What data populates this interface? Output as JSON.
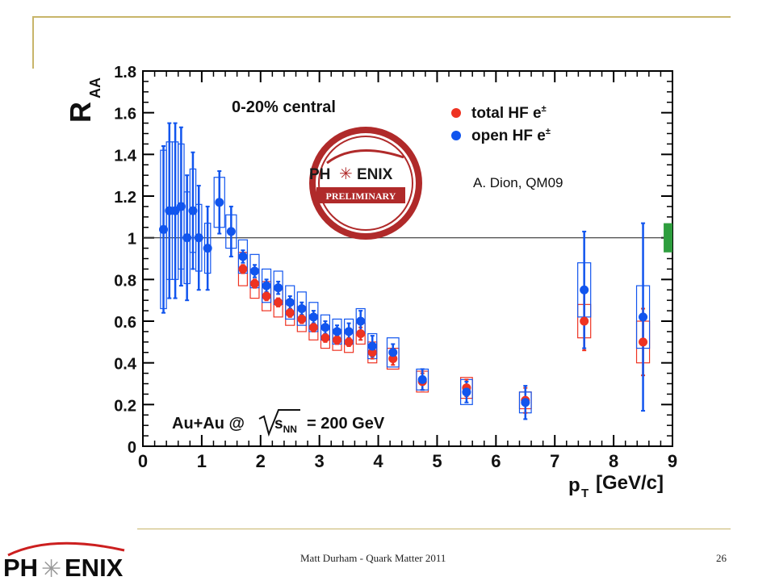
{
  "slide": {
    "footer": "Matt Durham - Quark Matter 2011",
    "page_number": "26",
    "logo_text": "PHENIX"
  },
  "annotations": {
    "centrality": "0-20% central",
    "system": "Au+Au @",
    "snn": "s",
    "snn_sub": "NN",
    "energy": "= 200 GeV",
    "credit": "A. Dion, QM09",
    "stamp_top": "PH",
    "stamp_mid": "ENIX",
    "stamp_bottom": "PRELIMINARY"
  },
  "colors": {
    "total": "#ee3322",
    "open": "#1155ee",
    "norm_box": "#2e9e3e",
    "frame": "#c8b56a",
    "stamp": "#b02a2a"
  },
  "chart_data": {
    "type": "scatter",
    "ylabel": "R",
    "ylabel_sub": "AA",
    "xlabel": "p",
    "xlabel_sub": "T",
    "xlabel_unit": "[GeV/c]",
    "xlim": [
      0,
      9
    ],
    "ylim": [
      0,
      1.8
    ],
    "xticks": [
      "0",
      "1",
      "2",
      "3",
      "4",
      "5",
      "6",
      "7",
      "8",
      "9"
    ],
    "yticks": [
      "0",
      "0.2",
      "0.4",
      "0.6",
      "0.8",
      "1",
      "1.2",
      "1.4",
      "1.6",
      "1.8"
    ],
    "reference_line": 1,
    "norm_uncertainty": [
      0.93,
      1.07
    ],
    "series": [
      {
        "name": "total HF e",
        "name_sup": "±",
        "color": "#ee3322",
        "x": [
          1.7,
          1.9,
          2.1,
          2.3,
          2.5,
          2.7,
          2.9,
          3.1,
          3.3,
          3.5,
          3.7,
          3.9,
          4.25,
          4.75,
          5.5,
          6.5,
          7.5,
          8.5
        ],
        "y": [
          0.85,
          0.78,
          0.72,
          0.69,
          0.64,
          0.61,
          0.57,
          0.52,
          0.51,
          0.5,
          0.54,
          0.45,
          0.42,
          0.31,
          0.28,
          0.22,
          0.6,
          0.5
        ],
        "stat": [
          0.02,
          0.02,
          0.02,
          0.02,
          0.02,
          0.02,
          0.02,
          0.02,
          0.02,
          0.02,
          0.03,
          0.03,
          0.03,
          0.04,
          0.04,
          0.06,
          0.14,
          0.16
        ],
        "sys": [
          0.08,
          0.07,
          0.07,
          0.07,
          0.06,
          0.06,
          0.06,
          0.05,
          0.05,
          0.05,
          0.05,
          0.05,
          0.05,
          0.05,
          0.05,
          0.04,
          0.08,
          0.1
        ]
      },
      {
        "name": "open HF e",
        "name_sup": "±",
        "color": "#1155ee",
        "x": [
          0.35,
          0.45,
          0.55,
          0.65,
          0.75,
          0.85,
          0.95,
          1.1,
          1.3,
          1.5,
          1.7,
          1.9,
          2.1,
          2.3,
          2.5,
          2.7,
          2.9,
          3.1,
          3.3,
          3.5,
          3.7,
          3.9,
          4.25,
          4.75,
          5.5,
          6.5,
          7.5,
          8.5
        ],
        "y": [
          1.04,
          1.13,
          1.13,
          1.15,
          1.0,
          1.13,
          1.0,
          0.95,
          1.17,
          1.03,
          0.91,
          0.84,
          0.77,
          0.76,
          0.69,
          0.66,
          0.62,
          0.57,
          0.55,
          0.55,
          0.6,
          0.48,
          0.45,
          0.32,
          0.26,
          0.21,
          0.75,
          0.62
        ],
        "stat": [
          0.4,
          0.42,
          0.42,
          0.38,
          0.3,
          0.28,
          0.25,
          0.2,
          0.15,
          0.12,
          0.03,
          0.03,
          0.03,
          0.03,
          0.03,
          0.03,
          0.03,
          0.03,
          0.03,
          0.04,
          0.05,
          0.05,
          0.04,
          0.05,
          0.05,
          0.08,
          0.28,
          0.45
        ],
        "sys": [
          0.38,
          0.33,
          0.33,
          0.3,
          0.22,
          0.2,
          0.16,
          0.12,
          0.12,
          0.08,
          0.08,
          0.08,
          0.08,
          0.08,
          0.08,
          0.08,
          0.07,
          0.06,
          0.06,
          0.06,
          0.06,
          0.06,
          0.07,
          0.05,
          0.06,
          0.05,
          0.13,
          0.15
        ]
      }
    ]
  }
}
